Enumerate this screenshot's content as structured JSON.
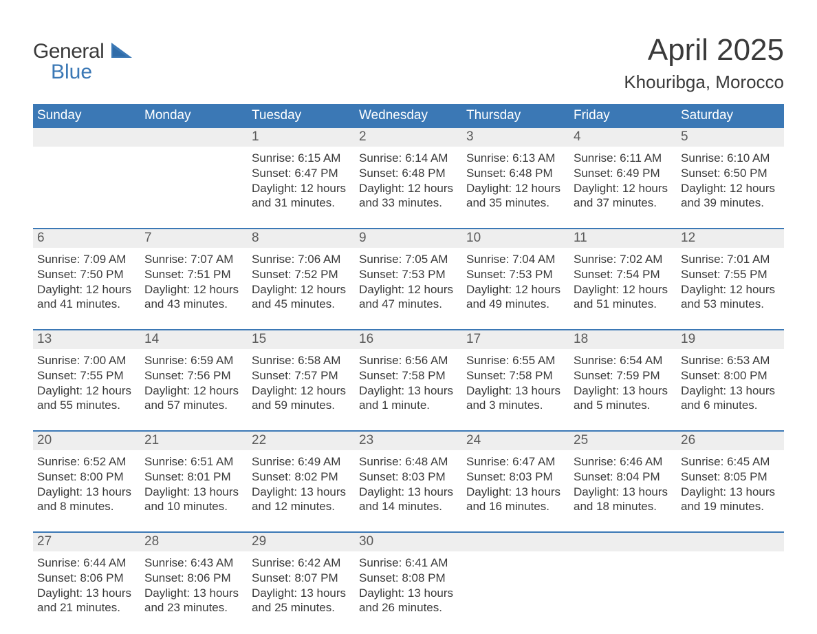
{
  "logo": {
    "text_general": "General",
    "text_blue": "Blue"
  },
  "title": "April 2025",
  "location": "Khouribga, Morocco",
  "colors": {
    "accent": "#3b78b5",
    "daynum_bg": "#eeeeee",
    "text": "#3a3a3a",
    "background": "#ffffff"
  },
  "calendar": {
    "type": "calendar-grid",
    "columns": 7,
    "rows": 5,
    "day_labels": [
      "Sunday",
      "Monday",
      "Tuesday",
      "Wednesday",
      "Thursday",
      "Friday",
      "Saturday"
    ],
    "weeks": [
      [
        {
          "day": "",
          "sunrise": "",
          "sunset": "",
          "daylight": ""
        },
        {
          "day": "",
          "sunrise": "",
          "sunset": "",
          "daylight": ""
        },
        {
          "day": "1",
          "sunrise": "Sunrise: 6:15 AM",
          "sunset": "Sunset: 6:47 PM",
          "daylight": "Daylight: 12 hours and 31 minutes."
        },
        {
          "day": "2",
          "sunrise": "Sunrise: 6:14 AM",
          "sunset": "Sunset: 6:48 PM",
          "daylight": "Daylight: 12 hours and 33 minutes."
        },
        {
          "day": "3",
          "sunrise": "Sunrise: 6:13 AM",
          "sunset": "Sunset: 6:48 PM",
          "daylight": "Daylight: 12 hours and 35 minutes."
        },
        {
          "day": "4",
          "sunrise": "Sunrise: 6:11 AM",
          "sunset": "Sunset: 6:49 PM",
          "daylight": "Daylight: 12 hours and 37 minutes."
        },
        {
          "day": "5",
          "sunrise": "Sunrise: 6:10 AM",
          "sunset": "Sunset: 6:50 PM",
          "daylight": "Daylight: 12 hours and 39 minutes."
        }
      ],
      [
        {
          "day": "6",
          "sunrise": "Sunrise: 7:09 AM",
          "sunset": "Sunset: 7:50 PM",
          "daylight": "Daylight: 12 hours and 41 minutes."
        },
        {
          "day": "7",
          "sunrise": "Sunrise: 7:07 AM",
          "sunset": "Sunset: 7:51 PM",
          "daylight": "Daylight: 12 hours and 43 minutes."
        },
        {
          "day": "8",
          "sunrise": "Sunrise: 7:06 AM",
          "sunset": "Sunset: 7:52 PM",
          "daylight": "Daylight: 12 hours and 45 minutes."
        },
        {
          "day": "9",
          "sunrise": "Sunrise: 7:05 AM",
          "sunset": "Sunset: 7:53 PM",
          "daylight": "Daylight: 12 hours and 47 minutes."
        },
        {
          "day": "10",
          "sunrise": "Sunrise: 7:04 AM",
          "sunset": "Sunset: 7:53 PM",
          "daylight": "Daylight: 12 hours and 49 minutes."
        },
        {
          "day": "11",
          "sunrise": "Sunrise: 7:02 AM",
          "sunset": "Sunset: 7:54 PM",
          "daylight": "Daylight: 12 hours and 51 minutes."
        },
        {
          "day": "12",
          "sunrise": "Sunrise: 7:01 AM",
          "sunset": "Sunset: 7:55 PM",
          "daylight": "Daylight: 12 hours and 53 minutes."
        }
      ],
      [
        {
          "day": "13",
          "sunrise": "Sunrise: 7:00 AM",
          "sunset": "Sunset: 7:55 PM",
          "daylight": "Daylight: 12 hours and 55 minutes."
        },
        {
          "day": "14",
          "sunrise": "Sunrise: 6:59 AM",
          "sunset": "Sunset: 7:56 PM",
          "daylight": "Daylight: 12 hours and 57 minutes."
        },
        {
          "day": "15",
          "sunrise": "Sunrise: 6:58 AM",
          "sunset": "Sunset: 7:57 PM",
          "daylight": "Daylight: 12 hours and 59 minutes."
        },
        {
          "day": "16",
          "sunrise": "Sunrise: 6:56 AM",
          "sunset": "Sunset: 7:58 PM",
          "daylight": "Daylight: 13 hours and 1 minute."
        },
        {
          "day": "17",
          "sunrise": "Sunrise: 6:55 AM",
          "sunset": "Sunset: 7:58 PM",
          "daylight": "Daylight: 13 hours and 3 minutes."
        },
        {
          "day": "18",
          "sunrise": "Sunrise: 6:54 AM",
          "sunset": "Sunset: 7:59 PM",
          "daylight": "Daylight: 13 hours and 5 minutes."
        },
        {
          "day": "19",
          "sunrise": "Sunrise: 6:53 AM",
          "sunset": "Sunset: 8:00 PM",
          "daylight": "Daylight: 13 hours and 6 minutes."
        }
      ],
      [
        {
          "day": "20",
          "sunrise": "Sunrise: 6:52 AM",
          "sunset": "Sunset: 8:00 PM",
          "daylight": "Daylight: 13 hours and 8 minutes."
        },
        {
          "day": "21",
          "sunrise": "Sunrise: 6:51 AM",
          "sunset": "Sunset: 8:01 PM",
          "daylight": "Daylight: 13 hours and 10 minutes."
        },
        {
          "day": "22",
          "sunrise": "Sunrise: 6:49 AM",
          "sunset": "Sunset: 8:02 PM",
          "daylight": "Daylight: 13 hours and 12 minutes."
        },
        {
          "day": "23",
          "sunrise": "Sunrise: 6:48 AM",
          "sunset": "Sunset: 8:03 PM",
          "daylight": "Daylight: 13 hours and 14 minutes."
        },
        {
          "day": "24",
          "sunrise": "Sunrise: 6:47 AM",
          "sunset": "Sunset: 8:03 PM",
          "daylight": "Daylight: 13 hours and 16 minutes."
        },
        {
          "day": "25",
          "sunrise": "Sunrise: 6:46 AM",
          "sunset": "Sunset: 8:04 PM",
          "daylight": "Daylight: 13 hours and 18 minutes."
        },
        {
          "day": "26",
          "sunrise": "Sunrise: 6:45 AM",
          "sunset": "Sunset: 8:05 PM",
          "daylight": "Daylight: 13 hours and 19 minutes."
        }
      ],
      [
        {
          "day": "27",
          "sunrise": "Sunrise: 6:44 AM",
          "sunset": "Sunset: 8:06 PM",
          "daylight": "Daylight: 13 hours and 21 minutes."
        },
        {
          "day": "28",
          "sunrise": "Sunrise: 6:43 AM",
          "sunset": "Sunset: 8:06 PM",
          "daylight": "Daylight: 13 hours and 23 minutes."
        },
        {
          "day": "29",
          "sunrise": "Sunrise: 6:42 AM",
          "sunset": "Sunset: 8:07 PM",
          "daylight": "Daylight: 13 hours and 25 minutes."
        },
        {
          "day": "30",
          "sunrise": "Sunrise: 6:41 AM",
          "sunset": "Sunset: 8:08 PM",
          "daylight": "Daylight: 13 hours and 26 minutes."
        },
        {
          "day": "",
          "sunrise": "",
          "sunset": "",
          "daylight": ""
        },
        {
          "day": "",
          "sunrise": "",
          "sunset": "",
          "daylight": ""
        },
        {
          "day": "",
          "sunrise": "",
          "sunset": "",
          "daylight": ""
        }
      ]
    ]
  }
}
